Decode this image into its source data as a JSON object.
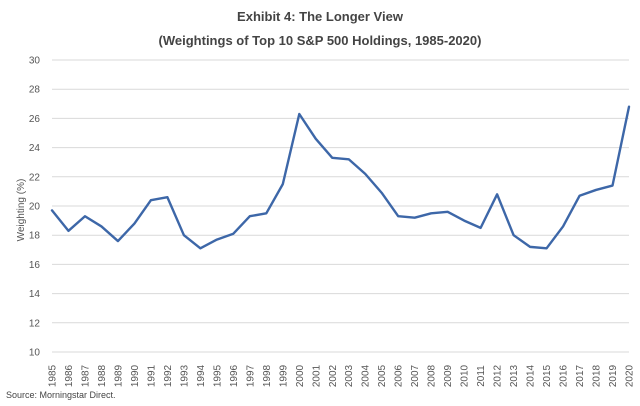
{
  "chart_data": {
    "type": "line",
    "title": "Exhibit 4: The Longer View",
    "subtitle": "(Weightings of Top 10 S&P 500 Holdings, 1985-2020)",
    "xlabel": "",
    "ylabel": "Weighting (%)",
    "ylim": [
      10,
      30
    ],
    "yticks": [
      "10",
      "12",
      "14",
      "16",
      "18",
      "20",
      "22",
      "24",
      "26",
      "28",
      "30"
    ],
    "grid": true,
    "x": [
      "1985",
      "1986",
      "1987",
      "1988",
      "1989",
      "1990",
      "1991",
      "1992",
      "1993",
      "1994",
      "1995",
      "1996",
      "1997",
      "1998",
      "1999",
      "2000",
      "2001",
      "2002",
      "2003",
      "2004",
      "2005",
      "2006",
      "2007",
      "2008",
      "2009",
      "2010",
      "2011",
      "2012",
      "2013",
      "2014",
      "2015",
      "2016",
      "2017",
      "2018",
      "2019",
      "2020"
    ],
    "series": [
      {
        "name": "Top 10 weighting",
        "color": "#3d67a8",
        "values": [
          19.7,
          18.3,
          19.3,
          18.6,
          17.6,
          18.8,
          20.4,
          20.6,
          18.0,
          17.1,
          17.7,
          18.1,
          19.3,
          19.5,
          21.5,
          26.3,
          24.6,
          23.3,
          23.2,
          22.2,
          20.9,
          19.3,
          19.2,
          19.5,
          19.6,
          19.0,
          18.5,
          20.8,
          18.0,
          17.2,
          17.1,
          18.6,
          20.7,
          21.1,
          21.4,
          26.8
        ]
      }
    ]
  },
  "source": "Source: Morningstar Direct."
}
